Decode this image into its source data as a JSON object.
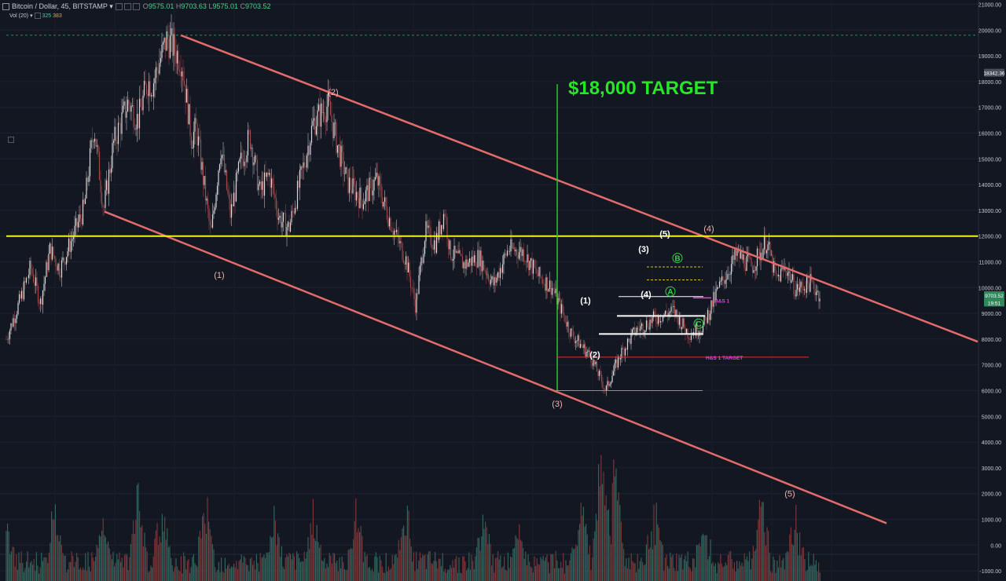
{
  "header": {
    "symbol": "Bitcoin / Dollar, 45, BITSTAMP",
    "caret": "▾",
    "o_label": "O",
    "o_value": "9575.01",
    "h_label": "H",
    "h_value": "9703.63",
    "l_label": "L",
    "l_value": "9575.01",
    "c_label": "C",
    "c_value": "9703.52"
  },
  "volume_header": {
    "label": "Vol (20)",
    "caret": "▾",
    "value1": "325",
    "value2": "383"
  },
  "colors": {
    "background": "#131722",
    "axis_text": "#c5cbce",
    "channel": "#e36b6b",
    "horizontal_resistance": "#f2f21c",
    "target_line": "#27c727",
    "target_text": "#27e627",
    "hs_magenta": "#e040e0",
    "hs_target_red": "#e0303a",
    "support_cyan": "#4aa8b8",
    "wave_circle": "#38d04a",
    "candle_up": "#d8d8d8",
    "candle_down": "#a04848",
    "price_tag": "#4a4f5c",
    "last_price_tag": "#2e8a5a"
  },
  "chart_data": {
    "type": "candlestick",
    "instrument": "Bitcoin / Dollar, 45, BITSTAMP",
    "yaxis": {
      "min": -1000,
      "max": 21000,
      "ticks": [
        "-1000.00",
        "0.00",
        "1000.00",
        "2000.00",
        "3000.00",
        "4000.00",
        "5000.00",
        "6000.00",
        "7000.00",
        "8000.00",
        "9000.00",
        "10000.00",
        "11000.00",
        "12000.00",
        "13000.00",
        "14000.00",
        "15000.00",
        "16000.00",
        "17000.00",
        "18000.00",
        "19000.00",
        "20000.00",
        "21000.00"
      ],
      "price_tags": [
        {
          "label": "18342.36",
          "value": 18342.36,
          "kind": "price"
        },
        {
          "label": "9703.52",
          "value": 9703.52,
          "kind": "last"
        },
        {
          "label": "19:51",
          "value": 9420,
          "kind": "last"
        }
      ]
    },
    "price_path": [
      [
        0,
        8000
      ],
      [
        0.03,
        9600
      ],
      [
        0.05,
        10800
      ],
      [
        0.07,
        9400
      ],
      [
        0.09,
        11500
      ],
      [
        0.11,
        10700
      ],
      [
        0.16,
        13100
      ],
      [
        0.18,
        16300
      ],
      [
        0.2,
        13000
      ],
      [
        0.22,
        15600
      ],
      [
        0.25,
        17200
      ],
      [
        0.27,
        16500
      ],
      [
        0.29,
        18000
      ],
      [
        0.3,
        17900
      ],
      [
        0.33,
        19700
      ],
      [
        0.36,
        18800
      ],
      [
        0.38,
        15800
      ],
      [
        0.39,
        16200
      ],
      [
        0.42,
        12000
      ],
      [
        0.44,
        15500
      ],
      [
        0.46,
        12800
      ],
      [
        0.48,
        14800
      ],
      [
        0.5,
        15900
      ],
      [
        0.52,
        13700
      ],
      [
        0.54,
        14400
      ],
      [
        0.56,
        12700
      ],
      [
        0.58,
        12300
      ],
      [
        0.61,
        14700
      ],
      [
        0.63,
        16400
      ],
      [
        0.66,
        17100
      ],
      [
        0.68,
        15500
      ],
      [
        0.7,
        14100
      ],
      [
        0.73,
        13400
      ],
      [
        0.76,
        14200
      ],
      [
        0.78,
        13000
      ],
      [
        0.8,
        12000
      ],
      [
        0.82,
        11100
      ],
      [
        0.84,
        9300
      ],
      [
        0.86,
        12200
      ],
      [
        0.88,
        11700
      ],
      [
        0.9,
        13000
      ],
      [
        0.91,
        11400
      ],
      [
        0.94,
        10900
      ],
      [
        0.97,
        11200
      ],
      [
        1.0,
        10100
      ],
      [
        1.03,
        11500
      ],
      [
        1.06,
        11400
      ],
      [
        1.09,
        10500
      ],
      [
        1.12,
        10000
      ],
      [
        1.16,
        8200
      ],
      [
        1.2,
        7300
      ],
      [
        1.23,
        6000
      ],
      [
        1.26,
        7400
      ],
      [
        1.29,
        8300
      ],
      [
        1.33,
        8800
      ],
      [
        1.37,
        9100
      ],
      [
        1.4,
        8200
      ],
      [
        1.43,
        8500
      ],
      [
        1.46,
        9900
      ],
      [
        1.5,
        11300
      ],
      [
        1.53,
        10800
      ],
      [
        1.56,
        11800
      ],
      [
        1.58,
        10300
      ],
      [
        1.6,
        10800
      ],
      [
        1.62,
        9900
      ],
      [
        1.65,
        10200
      ],
      [
        1.67,
        9700
      ]
    ],
    "channel_top": {
      "from": {
        "x": 230,
        "p": 19800
      },
      "to": {
        "x": 1244,
        "p": 7900
      }
    },
    "channel_bottom": {
      "from": {
        "x": 133,
        "p": 12950
      },
      "to": {
        "x": 1128,
        "p": 850
      }
    },
    "horizontal_level": {
      "price": 12000,
      "color": "#f2f21c"
    },
    "dashed_top_level": {
      "price": 19800
    },
    "target": {
      "text": "$18,000 TARGET",
      "price_top": 17900,
      "price_bottom": 6000
    },
    "wave_labels_channel": [
      {
        "text": "(1)",
        "price": 10500
      },
      {
        "text": "(2)",
        "price": 17600
      },
      {
        "text": "(3)",
        "price": 5500
      },
      {
        "text": "(4)",
        "price": 12300
      },
      {
        "text": "(5)",
        "price": 2000
      }
    ],
    "wave_labels_inner": [
      {
        "text": "(1)",
        "price": 9500
      },
      {
        "text": "(2)",
        "price": 7400
      },
      {
        "text": "(3)",
        "price": 11500
      },
      {
        "text": "(4)",
        "price": 9750
      },
      {
        "text": "(5)",
        "price": 12100
      }
    ],
    "wave_circles": [
      {
        "text": "A",
        "price": 9850
      },
      {
        "text": "B",
        "price": 11150
      },
      {
        "text": "C",
        "price": 8600
      }
    ],
    "levels": [
      {
        "price": 9650,
        "color": "#ffffff",
        "width": 1
      },
      {
        "price": 8900,
        "color": "#ffffff",
        "width": 2
      },
      {
        "price": 8200,
        "color": "#ffffff",
        "width": 2
      },
      {
        "price": 7300,
        "color": "#e0303a",
        "width": 1
      },
      {
        "price": 6000,
        "color": "#4aa8b8",
        "width": 1
      },
      {
        "price": 10300,
        "color": "#d2c52a",
        "width": 1,
        "dashed": true
      },
      {
        "price": 10800,
        "color": "#d2c52a",
        "width": 1,
        "dashed": true
      }
    ],
    "hs_labels": [
      {
        "text": "H&S 1",
        "price": 9500
      },
      {
        "text": "H&S 1 TARGET",
        "price": 7300
      }
    ],
    "volume_spikes": [
      [
        0.0,
        40
      ],
      [
        0.1,
        60
      ],
      [
        0.2,
        40
      ],
      [
        0.27,
        75
      ],
      [
        0.32,
        50
      ],
      [
        0.41,
        60
      ],
      [
        0.55,
        45
      ],
      [
        0.63,
        55
      ],
      [
        0.72,
        50
      ],
      [
        0.82,
        55
      ],
      [
        0.98,
        45
      ],
      [
        1.05,
        40
      ],
      [
        1.18,
        60
      ],
      [
        1.22,
        105
      ],
      [
        1.25,
        100
      ],
      [
        1.33,
        55
      ],
      [
        1.43,
        40
      ],
      [
        1.55,
        60
      ],
      [
        1.62,
        45
      ]
    ]
  }
}
